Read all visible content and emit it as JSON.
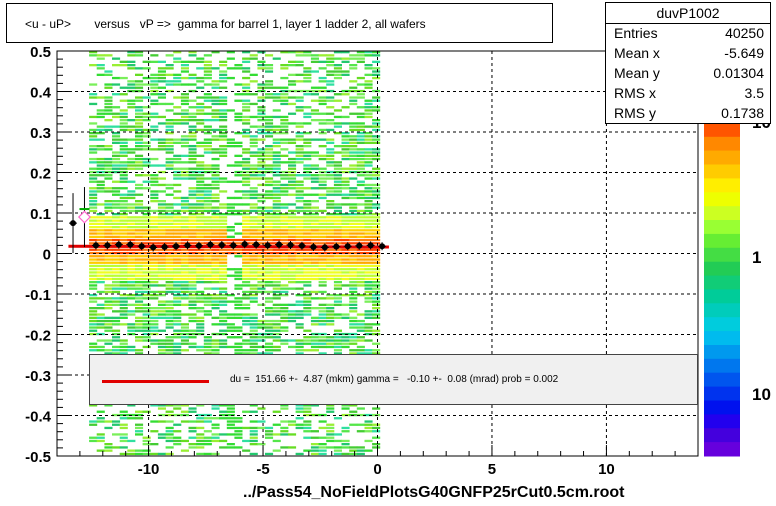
{
  "title": "<u - uP>       versus   vP =>  gamma for barrel 1, layer 1 ladder 2, all wafers",
  "stats": {
    "name": "duvP1002",
    "rows": [
      {
        "key": "Entries",
        "value": "40250"
      },
      {
        "key": "Mean x",
        "value": "-5.649"
      },
      {
        "key": "Mean y",
        "value": "0.01304"
      },
      {
        "key": "RMS x",
        "value": "3.5"
      },
      {
        "key": "RMS y",
        "value": "0.1738"
      }
    ]
  },
  "fit_text": "du =  151.66 +-  4.87 (mkm) gamma =   -0.10 +-  0.08 (mrad) prob = 0.002",
  "file_label": "../Pass54_NoFieldPlotsG40GNFP25rCut0.5cm.root",
  "colorbar_labels": [
    "10",
    "1",
    "10"
  ],
  "colors": {
    "fit_line": "#e00000",
    "marker": "#000000",
    "outlier_marker": "#ff66cc",
    "outlier_marker2": "#00aa00"
  },
  "chart_data": {
    "type": "heatmap",
    "title": "<u - uP>       versus   vP =>  gamma for barrel 1, layer 1 ladder 2, all wafers",
    "xlim": [
      -14,
      14
    ],
    "ylim": [
      -0.5,
      0.5
    ],
    "x_ticks": [
      -10,
      -5,
      0,
      5,
      10
    ],
    "y_ticks": [
      -0.5,
      -0.4,
      -0.3,
      -0.2,
      -0.1,
      0,
      0.1,
      0.2,
      0.3,
      0.4,
      0.5
    ],
    "x_tick_labels": [
      "-10",
      "-5",
      "0",
      "5",
      "10"
    ],
    "y_tick_labels": [
      "-0.5",
      "-0.4",
      "-0.3",
      "-0.2",
      "-0.1",
      "0",
      "0.1",
      "0.2",
      "0.3",
      "0.4",
      "0.5"
    ],
    "grid": true,
    "log_z": true,
    "filled_x_range": [
      -12.6,
      0.1
    ],
    "profile": {
      "x": [
        -13.3,
        -12.8,
        -12.3,
        -11.8,
        -11.3,
        -10.8,
        -10.3,
        -9.8,
        -9.3,
        -8.8,
        -8.3,
        -7.8,
        -7.3,
        -6.8,
        -6.3,
        -5.8,
        -5.3,
        -4.8,
        -4.3,
        -3.8,
        -3.3,
        -2.8,
        -2.3,
        -1.8,
        -1.3,
        -0.8,
        -0.3,
        0.2
      ],
      "y": [
        0.075,
        0.09,
        0.02,
        0.02,
        0.022,
        0.022,
        0.018,
        0.015,
        0.016,
        0.018,
        0.02,
        0.019,
        0.022,
        0.021,
        0.02,
        0.023,
        0.022,
        0.02,
        0.022,
        0.021,
        0.019,
        0.016,
        0.015,
        0.017,
        0.018,
        0.019,
        0.02,
        0.018
      ]
    },
    "fit_line": {
      "x": [
        -13.5,
        0.5
      ],
      "y": [
        0.018,
        0.016
      ]
    }
  }
}
